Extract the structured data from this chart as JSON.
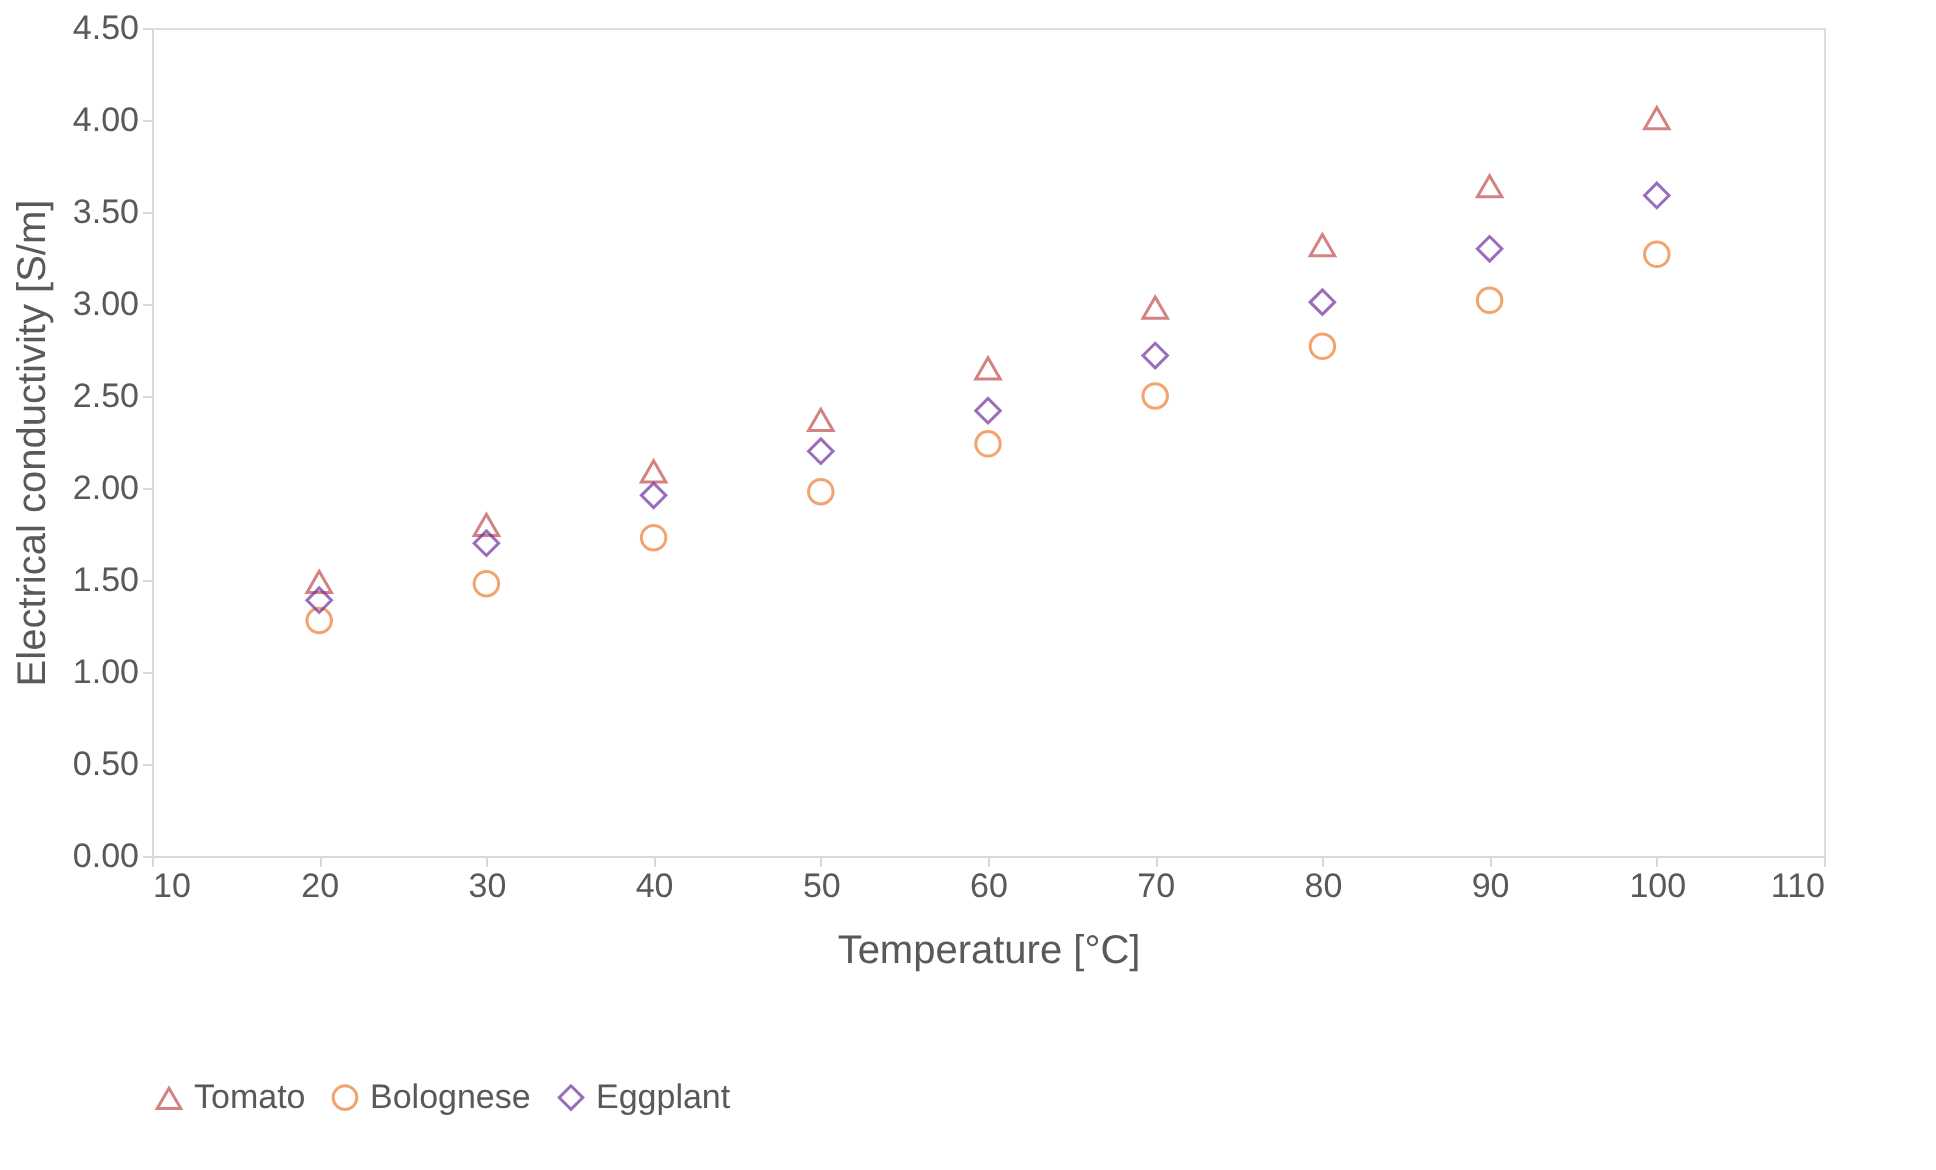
{
  "chart_data": {
    "type": "scatter",
    "xlabel": "Temperature [°C]",
    "ylabel": "Electrical conductivity  [S/m]",
    "x": [
      20,
      30,
      40,
      50,
      60,
      70,
      80,
      90,
      100
    ],
    "series": [
      {
        "name": "Tomato",
        "color": "#c0504d",
        "marker": "triangle",
        "values": [
          1.49,
          1.8,
          2.09,
          2.37,
          2.65,
          2.98,
          3.32,
          3.64,
          4.01
        ]
      },
      {
        "name": "Bolognese",
        "color": "#ed7d31",
        "marker": "circle",
        "values": [
          1.28,
          1.48,
          1.73,
          1.98,
          2.24,
          2.5,
          2.77,
          3.02,
          3.27
        ]
      },
      {
        "name": "Eggplant",
        "color": "#7030a0",
        "marker": "diamond",
        "values": [
          1.39,
          1.7,
          1.96,
          2.2,
          2.42,
          2.72,
          3.01,
          3.3,
          3.59
        ]
      }
    ],
    "xlim": [
      10,
      110
    ],
    "xticks": [
      10,
      20,
      30,
      40,
      50,
      60,
      70,
      80,
      90,
      100,
      110
    ],
    "ylim": [
      0,
      4.5
    ],
    "yticks": [
      {
        "value": 0,
        "label": "0.00"
      },
      {
        "value": 0.5,
        "label": "0.50"
      },
      {
        "value": 1,
        "label": "1.00"
      },
      {
        "value": 1.5,
        "label": "1.50"
      },
      {
        "value": 2,
        "label": "2.00"
      },
      {
        "value": 2.5,
        "label": "2.50"
      },
      {
        "value": 3,
        "label": "3.00"
      },
      {
        "value": 3.5,
        "label": "3.50"
      },
      {
        "value": 4,
        "label": "4.00"
      },
      {
        "value": 4.5,
        "label": "4.50"
      }
    ],
    "grid": false,
    "legend": "bottom"
  }
}
